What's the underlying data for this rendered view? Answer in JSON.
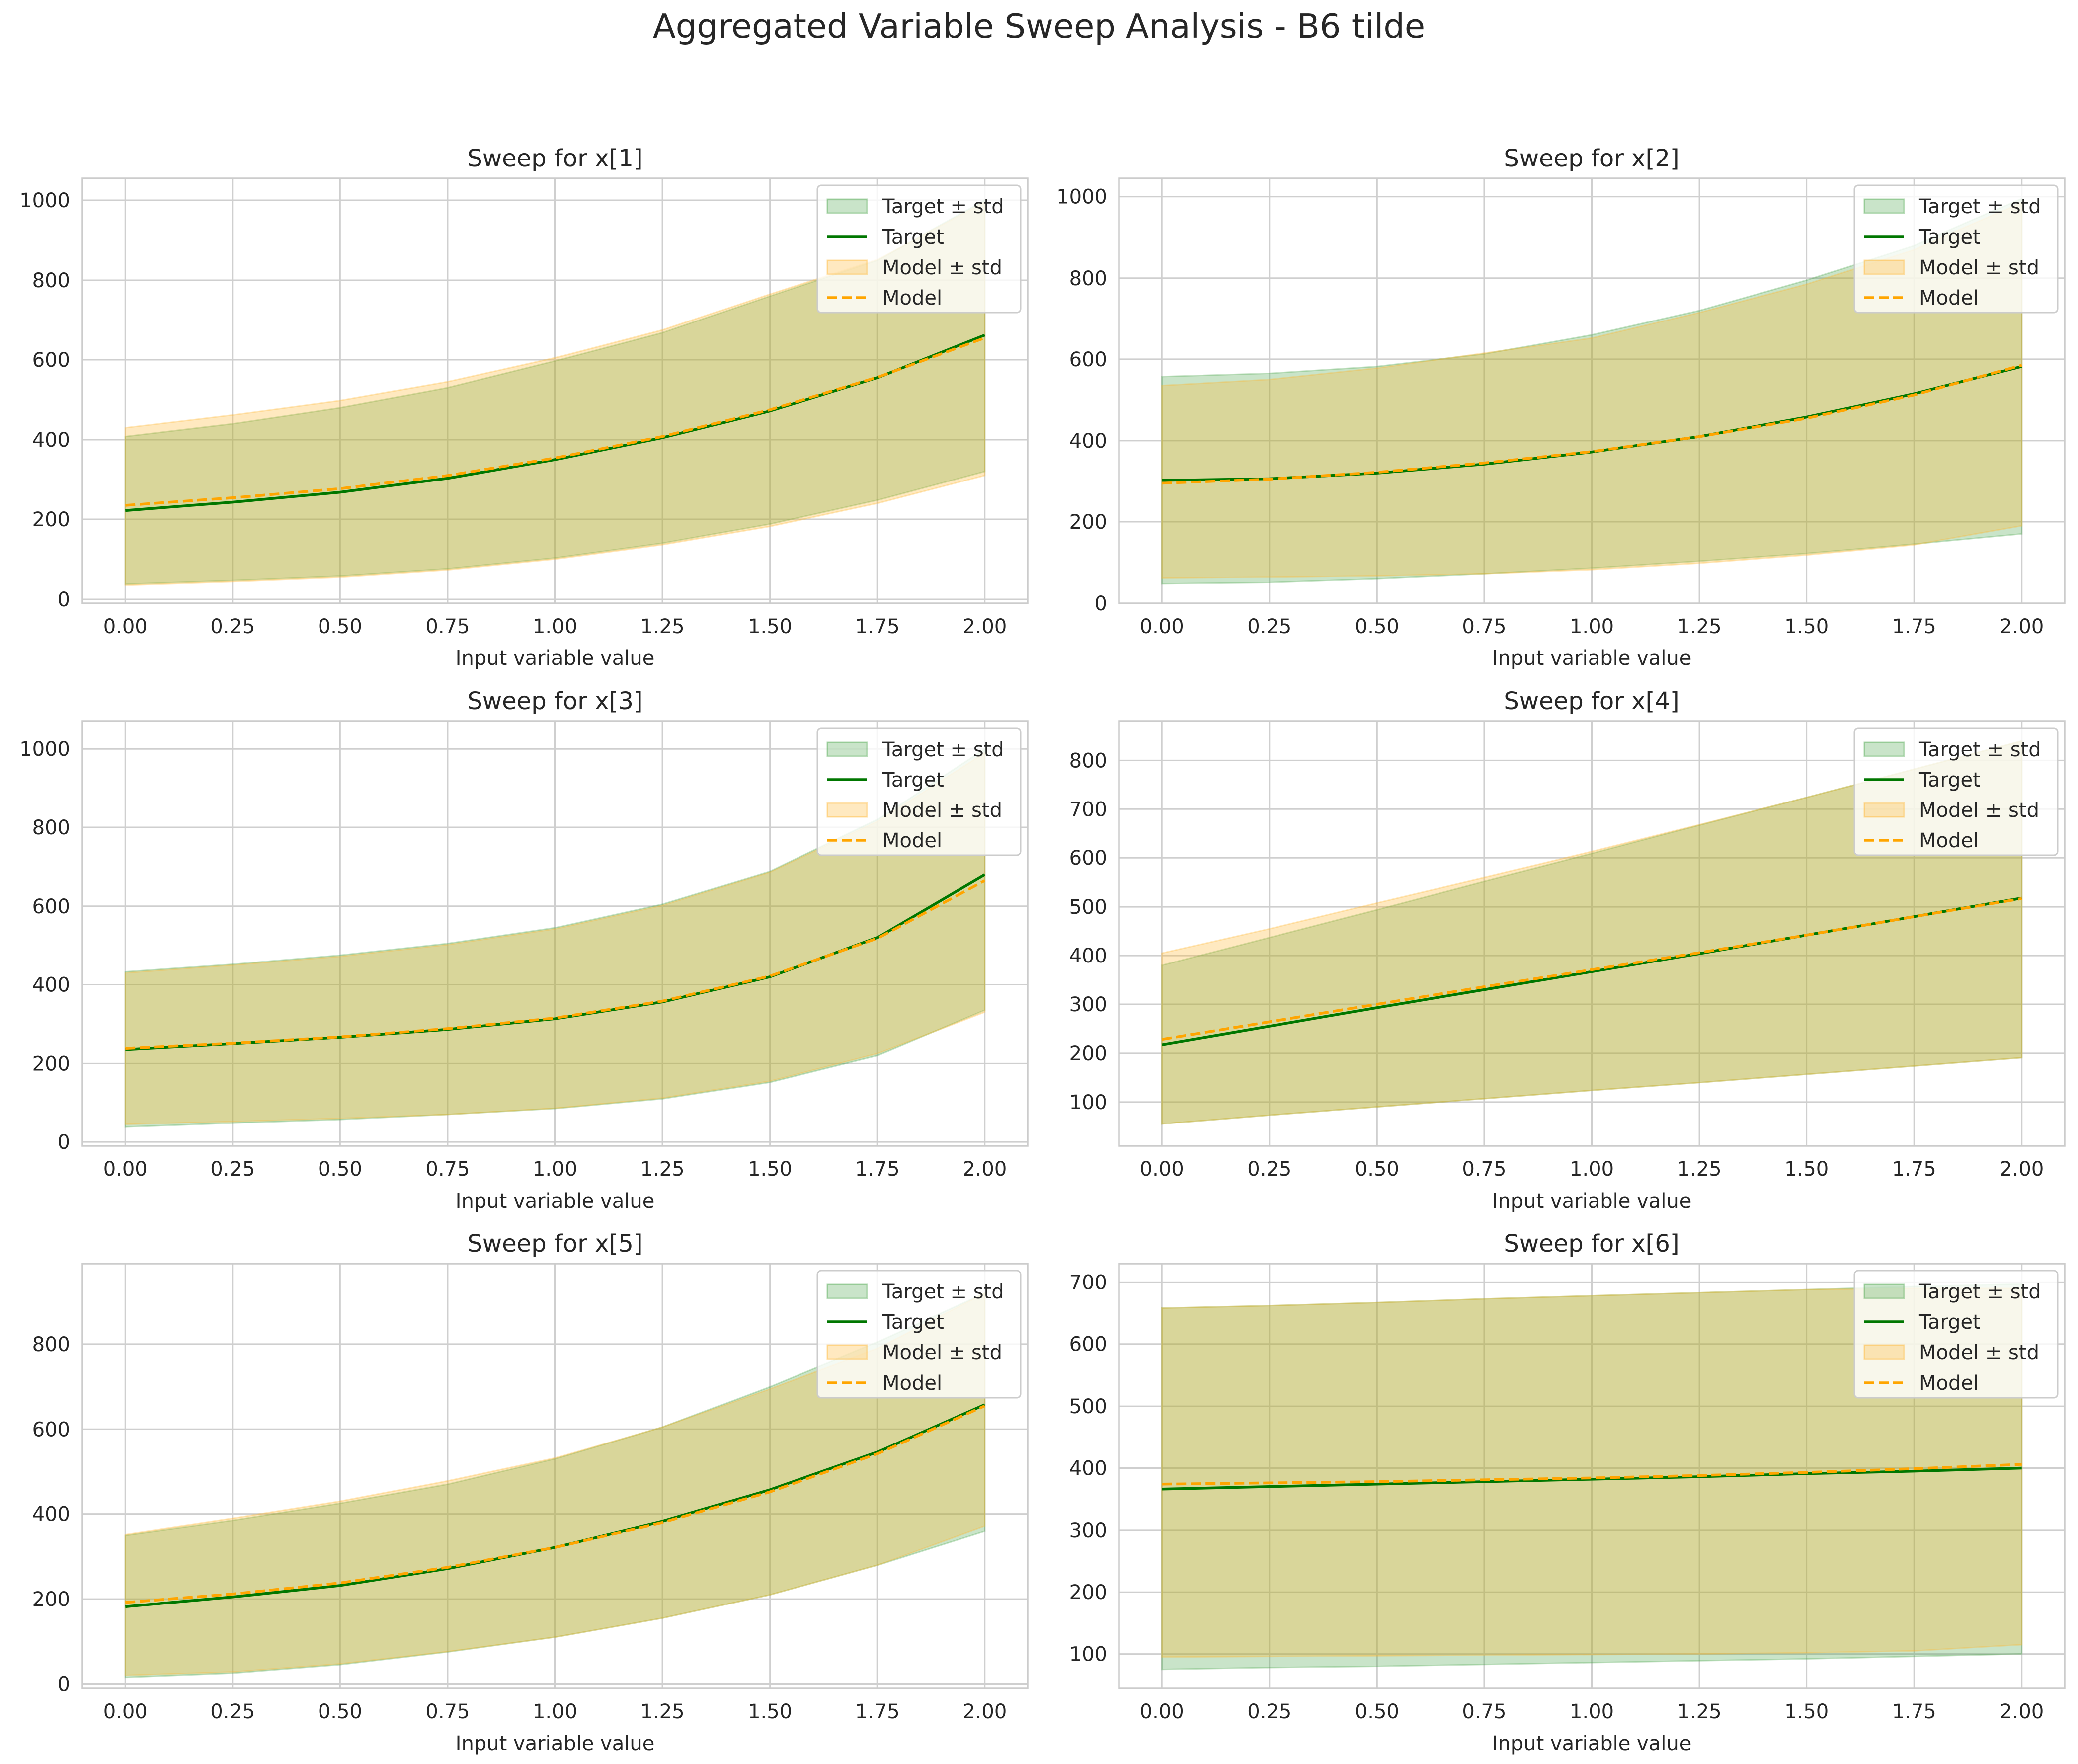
{
  "figure": {
    "title": "Aggregated Variable Sweep Analysis - B6 tilde"
  },
  "colors": {
    "target_line": "#007700",
    "target_fill": "#4ca64c",
    "model_line": "#ffa500",
    "model_fill": "#ffd27f",
    "grid": "#cfcfcf",
    "axes_edge": "#cccccc",
    "text": "#262626"
  },
  "legend_labels": [
    "Target ± std",
    "Target",
    "Model ± std",
    "Model"
  ],
  "chart_data": [
    {
      "type": "line",
      "title": "Sweep for x[1]",
      "xlabel": "Input variable value",
      "ylabel": "",
      "xlim": [
        -0.1,
        2.1
      ],
      "ylim": [
        -10,
        1055
      ],
      "xticks": [
        0.0,
        0.25,
        0.5,
        0.75,
        1.0,
        1.25,
        1.5,
        1.75,
        2.0
      ],
      "xtick_labels": [
        "0.00",
        "0.25",
        "0.50",
        "0.75",
        "1.00",
        "1.25",
        "1.50",
        "1.75",
        "2.00"
      ],
      "yticks": [
        0,
        200,
        400,
        600,
        800,
        1000
      ],
      "ytick_labels": [
        "0",
        "200",
        "400",
        "600",
        "800",
        "1000"
      ],
      "grid": true,
      "legend_position": "top-right",
      "x": [
        0.0,
        0.25,
        0.5,
        0.75,
        1.0,
        1.25,
        1.5,
        1.75,
        2.0
      ],
      "series": [
        {
          "name": "Target",
          "values": [
            222,
            243,
            268,
            303,
            350,
            405,
            472,
            555,
            662
          ],
          "lower": [
            38,
            47,
            58,
            76,
            103,
            140,
            188,
            248,
            320
          ],
          "upper": [
            408,
            440,
            480,
            530,
            597,
            668,
            760,
            850,
            1000
          ]
        },
        {
          "name": "Model",
          "values": [
            235,
            254,
            277,
            310,
            354,
            408,
            475,
            556,
            655
          ],
          "lower": [
            35,
            44,
            55,
            73,
            100,
            136,
            182,
            240,
            310
          ],
          "upper": [
            430,
            462,
            498,
            545,
            605,
            675,
            765,
            852,
            995
          ]
        }
      ]
    },
    {
      "type": "line",
      "title": "Sweep for x[2]",
      "xlabel": "Input variable value",
      "ylabel": "",
      "xlim": [
        -0.1,
        2.1
      ],
      "ylim": [
        0,
        1045
      ],
      "xticks": [
        0.0,
        0.25,
        0.5,
        0.75,
        1.0,
        1.25,
        1.5,
        1.75,
        2.0
      ],
      "xtick_labels": [
        "0.00",
        "0.25",
        "0.50",
        "0.75",
        "1.00",
        "1.25",
        "1.50",
        "1.75",
        "2.00"
      ],
      "yticks": [
        0,
        200,
        400,
        600,
        800,
        1000
      ],
      "ytick_labels": [
        "0",
        "200",
        "400",
        "600",
        "800",
        "1000"
      ],
      "grid": true,
      "legend_position": "top-right",
      "x": [
        0.0,
        0.25,
        0.5,
        0.75,
        1.0,
        1.25,
        1.5,
        1.75,
        2.0
      ],
      "series": [
        {
          "name": "Target",
          "values": [
            302,
            306,
            320,
            342,
            372,
            410,
            458,
            515,
            582
          ],
          "lower": [
            48,
            51,
            60,
            72,
            86,
            103,
            122,
            145,
            170
          ],
          "upper": [
            557,
            565,
            582,
            613,
            660,
            720,
            795,
            880,
            995
          ]
        },
        {
          "name": "Model",
          "values": [
            295,
            305,
            322,
            345,
            373,
            410,
            455,
            512,
            585
          ],
          "lower": [
            62,
            64,
            67,
            72,
            82,
            98,
            118,
            143,
            190
          ],
          "upper": [
            535,
            550,
            578,
            615,
            652,
            715,
            785,
            870,
            985
          ]
        }
      ]
    },
    {
      "type": "line",
      "title": "Sweep for x[3]",
      "xlabel": "Input variable value",
      "ylabel": "",
      "xlim": [
        -0.1,
        2.1
      ],
      "ylim": [
        -10,
        1070
      ],
      "xticks": [
        0.0,
        0.25,
        0.5,
        0.75,
        1.0,
        1.25,
        1.5,
        1.75,
        2.0
      ],
      "xtick_labels": [
        "0.00",
        "0.25",
        "0.50",
        "0.75",
        "1.00",
        "1.25",
        "1.50",
        "1.75",
        "2.00"
      ],
      "yticks": [
        0,
        200,
        400,
        600,
        800,
        1000
      ],
      "ytick_labels": [
        "0",
        "200",
        "400",
        "600",
        "800",
        "1000"
      ],
      "grid": true,
      "legend_position": "top-right",
      "x": [
        0.0,
        0.25,
        0.5,
        0.75,
        1.0,
        1.25,
        1.5,
        1.75,
        2.0
      ],
      "series": [
        {
          "name": "Target",
          "values": [
            235,
            250,
            266,
            286,
            313,
            356,
            420,
            520,
            680
          ],
          "lower": [
            38,
            48,
            57,
            70,
            85,
            110,
            152,
            220,
            335
          ],
          "upper": [
            433,
            452,
            475,
            505,
            545,
            605,
            688,
            820,
            1000
          ]
        },
        {
          "name": "Model",
          "values": [
            238,
            251,
            267,
            288,
            315,
            358,
            422,
            518,
            665
          ],
          "lower": [
            45,
            52,
            60,
            70,
            86,
            112,
            155,
            225,
            330
          ],
          "upper": [
            430,
            450,
            472,
            502,
            542,
            602,
            686,
            815,
            990
          ]
        }
      ]
    },
    {
      "type": "line",
      "title": "Sweep for x[4]",
      "xlabel": "Input variable value",
      "ylabel": "",
      "xlim": [
        -0.1,
        2.1
      ],
      "ylim": [
        10,
        880
      ],
      "xticks": [
        0.0,
        0.25,
        0.5,
        0.75,
        1.0,
        1.25,
        1.5,
        1.75,
        2.0
      ],
      "xtick_labels": [
        "0.00",
        "0.25",
        "0.50",
        "0.75",
        "1.00",
        "1.25",
        "1.50",
        "1.75",
        "2.00"
      ],
      "yticks": [
        100,
        200,
        300,
        400,
        500,
        600,
        700,
        800
      ],
      "ytick_labels": [
        "100",
        "200",
        "300",
        "400",
        "500",
        "600",
        "700",
        "800"
      ],
      "grid": true,
      "legend_position": "top-right",
      "x": [
        0.0,
        0.25,
        0.5,
        0.75,
        1.0,
        1.25,
        1.5,
        1.75,
        2.0
      ],
      "series": [
        {
          "name": "Target",
          "values": [
            217,
            255,
            293,
            330,
            367,
            404,
            442,
            480,
            518
          ],
          "lower": [
            55,
            73,
            90,
            107,
            124,
            140,
            157,
            174,
            191
          ],
          "upper": [
            380,
            437,
            494,
            552,
            609,
            667,
            724,
            782,
            840
          ]
        },
        {
          "name": "Model",
          "values": [
            228,
            264,
            300,
            336,
            371,
            406,
            442,
            480,
            517
          ],
          "lower": [
            55,
            73,
            90,
            107,
            124,
            140,
            157,
            174,
            191
          ],
          "upper": [
            405,
            455,
            508,
            560,
            613,
            668,
            724,
            782,
            840
          ]
        }
      ]
    },
    {
      "type": "line",
      "title": "Sweep for x[5]",
      "xlabel": "Input variable value",
      "ylabel": "",
      "xlim": [
        -0.1,
        2.1
      ],
      "ylim": [
        -10,
        990
      ],
      "xticks": [
        0.0,
        0.25,
        0.5,
        0.75,
        1.0,
        1.25,
        1.5,
        1.75,
        2.0
      ],
      "xtick_labels": [
        "0.00",
        "0.25",
        "0.50",
        "0.75",
        "1.00",
        "1.25",
        "1.50",
        "1.75",
        "2.00"
      ],
      "yticks": [
        0,
        200,
        400,
        600,
        800
      ],
      "ytick_labels": [
        "0",
        "200",
        "400",
        "600",
        "800"
      ],
      "grid": true,
      "legend_position": "top-right",
      "x": [
        0.0,
        0.25,
        0.5,
        0.75,
        1.0,
        1.25,
        1.5,
        1.75,
        2.0
      ],
      "series": [
        {
          "name": "Target",
          "values": [
            182,
            205,
            232,
            272,
            322,
            383,
            457,
            546,
            658
          ],
          "lower": [
            15,
            25,
            45,
            75,
            110,
            155,
            210,
            280,
            360
          ],
          "upper": [
            350,
            385,
            425,
            470,
            530,
            605,
            700,
            805,
            920
          ]
        },
        {
          "name": "Model",
          "values": [
            192,
            212,
            238,
            275,
            322,
            380,
            452,
            542,
            655
          ],
          "lower": [
            20,
            28,
            47,
            76,
            110,
            155,
            210,
            280,
            372
          ],
          "upper": [
            352,
            390,
            430,
            478,
            532,
            605,
            695,
            790,
            920
          ]
        }
      ]
    },
    {
      "type": "line",
      "title": "Sweep for x[6]",
      "xlabel": "Input variable value",
      "ylabel": "",
      "xlim": [
        -0.1,
        2.1
      ],
      "ylim": [
        45,
        730
      ],
      "xticks": [
        0.0,
        0.25,
        0.5,
        0.75,
        1.0,
        1.25,
        1.5,
        1.75,
        2.0
      ],
      "xtick_labels": [
        "0.00",
        "0.25",
        "0.50",
        "0.75",
        "1.00",
        "1.25",
        "1.50",
        "1.75",
        "2.00"
      ],
      "yticks": [
        100,
        200,
        300,
        400,
        500,
        600,
        700
      ],
      "ytick_labels": [
        "100",
        "200",
        "300",
        "400",
        "500",
        "600",
        "700"
      ],
      "grid": true,
      "legend_position": "top-right",
      "x": [
        0.0,
        0.25,
        0.5,
        0.75,
        1.0,
        1.25,
        1.5,
        1.75,
        2.0
      ],
      "series": [
        {
          "name": "Target",
          "values": [
            366,
            370,
            374,
            378,
            382,
            386,
            391,
            395,
            400
          ],
          "lower": [
            75,
            78,
            80,
            83,
            86,
            89,
            92,
            96,
            100
          ],
          "upper": [
            658,
            662,
            667,
            673,
            678,
            683,
            688,
            693,
            697
          ]
        },
        {
          "name": "Model",
          "values": [
            374,
            376,
            378,
            381,
            384,
            388,
            393,
            399,
            406
          ],
          "lower": [
            95,
            96,
            97,
            98,
            99,
            100,
            102,
            105,
            115
          ],
          "upper": [
            658,
            662,
            667,
            673,
            678,
            683,
            688,
            690,
            690
          ]
        }
      ]
    }
  ]
}
